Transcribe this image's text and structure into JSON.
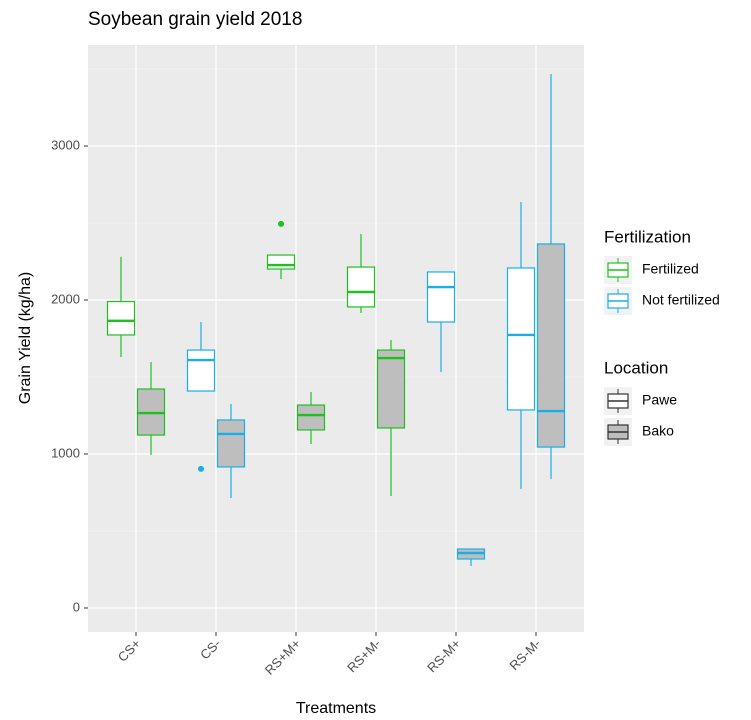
{
  "chart_data": {
    "type": "boxplot",
    "title": "Soybean grain yield 2018",
    "x_label": "Treatments",
    "y_label": "Grain Yield (kg/ha)",
    "categories": [
      "CS+",
      "CS-",
      "RS+M+",
      "RS+M-",
      "RS-M+",
      "RS-M-"
    ],
    "ylim": [
      -156,
      3656
    ],
    "yticks": [
      0,
      1000,
      2000,
      3000
    ],
    "minor_yticks": [
      500,
      1500,
      2500,
      3500
    ],
    "grid": true,
    "legend_position": "right",
    "legends": [
      {
        "title": "Fertilization",
        "entries": [
          {
            "label": "Fertilized",
            "color": "#1ec01e"
          },
          {
            "label": "Not fertilized",
            "color": "#1aaee8"
          }
        ]
      },
      {
        "title": "Location",
        "entries": [
          {
            "label": "Pawe",
            "fill": "#ffffff"
          },
          {
            "label": "Bako",
            "fill": "#bebebe"
          }
        ]
      }
    ],
    "boxes": [
      {
        "category": 0,
        "fertilization": 0,
        "location": 0,
        "min": 1630,
        "q1": 1773,
        "median": 1865,
        "q3": 1990,
        "max": 2280,
        "outliers": []
      },
      {
        "category": 0,
        "fertilization": 0,
        "location": 1,
        "min": 994,
        "q1": 1123,
        "median": 1266,
        "q3": 1422,
        "max": 1597,
        "outliers": []
      },
      {
        "category": 1,
        "fertilization": 1,
        "location": 0,
        "min": 1409,
        "q1": 1409,
        "median": 1610,
        "q3": 1675,
        "max": 1857,
        "outliers": [
          903
        ]
      },
      {
        "category": 1,
        "fertilization": 1,
        "location": 1,
        "min": 714,
        "q1": 916,
        "median": 1130,
        "q3": 1221,
        "max": 1325,
        "outliers": []
      },
      {
        "category": 2,
        "fertilization": 0,
        "location": 0,
        "min": 2136,
        "q1": 2201,
        "median": 2227,
        "q3": 2292,
        "max": 2292,
        "outliers": [
          2494
        ]
      },
      {
        "category": 2,
        "fertilization": 0,
        "location": 1,
        "min": 1065,
        "q1": 1156,
        "median": 1253,
        "q3": 1318,
        "max": 1403,
        "outliers": []
      },
      {
        "category": 3,
        "fertilization": 0,
        "location": 0,
        "min": 1916,
        "q1": 1955,
        "median": 2052,
        "q3": 2214,
        "max": 2429,
        "outliers": []
      },
      {
        "category": 3,
        "fertilization": 0,
        "location": 1,
        "min": 727,
        "q1": 1169,
        "median": 1623,
        "q3": 1675,
        "max": 1740,
        "outliers": []
      },
      {
        "category": 4,
        "fertilization": 1,
        "location": 0,
        "min": 1532,
        "q1": 1857,
        "median": 2084,
        "q3": 2182,
        "max": 2182,
        "outliers": []
      },
      {
        "category": 4,
        "fertilization": 1,
        "location": 1,
        "min": 273,
        "q1": 318,
        "median": 357,
        "q3": 383,
        "max": 383,
        "outliers": []
      },
      {
        "category": 5,
        "fertilization": 1,
        "location": 0,
        "min": 773,
        "q1": 1286,
        "median": 1773,
        "q3": 2208,
        "max": 2636,
        "outliers": []
      },
      {
        "category": 5,
        "fertilization": 1,
        "location": 1,
        "min": 838,
        "q1": 1045,
        "median": 1279,
        "q3": 2364,
        "max": 3468,
        "outliers": []
      }
    ]
  }
}
